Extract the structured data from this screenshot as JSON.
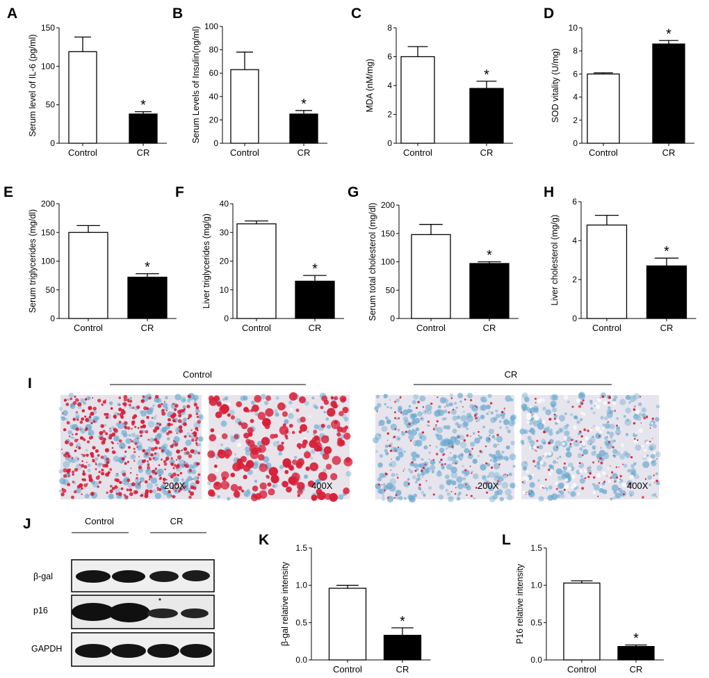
{
  "chart_data": [
    {
      "panel": "A",
      "type": "bar",
      "categories": [
        "Control",
        "CR"
      ],
      "values": [
        119,
        38
      ],
      "errors": [
        19,
        3
      ],
      "significance": [
        "",
        "*"
      ],
      "ylabel": "Serum level of IL-6 (pg/ml)",
      "ylim": [
        0,
        150
      ],
      "yticks": [
        0,
        50,
        100,
        150
      ]
    },
    {
      "panel": "B",
      "type": "bar",
      "categories": [
        "Control",
        "CR"
      ],
      "values": [
        63,
        25
      ],
      "errors": [
        15,
        3
      ],
      "significance": [
        "",
        "*"
      ],
      "ylabel": "Serum Levels of Insulin(ng/ml)",
      "ylim": [
        0,
        100
      ],
      "yticks": [
        0,
        20,
        40,
        60,
        80,
        100
      ]
    },
    {
      "panel": "C",
      "type": "bar",
      "categories": [
        "Control",
        "CR"
      ],
      "values": [
        6.0,
        3.8
      ],
      "errors": [
        0.7,
        0.5
      ],
      "significance": [
        "",
        "*"
      ],
      "ylabel": "MDA (nM/mg)",
      "ylim": [
        0,
        8
      ],
      "yticks": [
        0,
        2,
        4,
        6,
        8
      ]
    },
    {
      "panel": "D",
      "type": "bar",
      "categories": [
        "Control",
        "CR"
      ],
      "values": [
        6.0,
        8.6
      ],
      "errors": [
        0.1,
        0.3
      ],
      "significance": [
        "",
        "*"
      ],
      "ylabel": "SOD vitality (U/mg)",
      "ylim": [
        0,
        10
      ],
      "yticks": [
        0,
        2,
        4,
        6,
        8,
        10
      ]
    },
    {
      "panel": "E",
      "type": "bar",
      "categories": [
        "Control",
        "CR"
      ],
      "values": [
        150,
        72
      ],
      "errors": [
        12,
        6
      ],
      "significance": [
        "",
        "*"
      ],
      "ylabel": "Serum triglycerides (mg/dl)",
      "ylim": [
        0,
        200
      ],
      "yticks": [
        0,
        50,
        100,
        150,
        200
      ]
    },
    {
      "panel": "F",
      "type": "bar",
      "categories": [
        "Control",
        "CR"
      ],
      "values": [
        33,
        13
      ],
      "errors": [
        1,
        2
      ],
      "significance": [
        "",
        "*"
      ],
      "ylabel": "Liver triglycerides (mg/g)",
      "ylim": [
        0,
        40
      ],
      "yticks": [
        0,
        10,
        20,
        30,
        40
      ]
    },
    {
      "panel": "G",
      "type": "bar",
      "categories": [
        "Control",
        "CR"
      ],
      "values": [
        148,
        97
      ],
      "errors": [
        18,
        3
      ],
      "significance": [
        "",
        "*"
      ],
      "ylabel": "Serum total cholesterol (mg/dl)",
      "ylim": [
        0,
        200
      ],
      "yticks": [
        0,
        50,
        100,
        150,
        200
      ]
    },
    {
      "panel": "H",
      "type": "bar",
      "categories": [
        "Control",
        "CR"
      ],
      "values": [
        4.8,
        2.7
      ],
      "errors": [
        0.5,
        0.4
      ],
      "significance": [
        "",
        "*"
      ],
      "ylabel": "Liver cholesterol (mg/g)",
      "ylim": [
        0,
        6
      ],
      "yticks": [
        0,
        2,
        4,
        6
      ]
    },
    {
      "panel": "K",
      "type": "bar",
      "categories": [
        "Control",
        "CR"
      ],
      "values": [
        0.96,
        0.33
      ],
      "errors": [
        0.04,
        0.1
      ],
      "significance": [
        "",
        "*"
      ],
      "ylabel": "β-gal relative intensity",
      "ylim": [
        0,
        1.5
      ],
      "yticks": [
        "0.0",
        "0.5",
        "1.0",
        "1.5"
      ]
    },
    {
      "panel": "L",
      "type": "bar",
      "categories": [
        "Control",
        "CR"
      ],
      "values": [
        1.03,
        0.18
      ],
      "errors": [
        0.03,
        0.02
      ],
      "significance": [
        "",
        "*"
      ],
      "ylabel": "P16 relative intensity",
      "ylim": [
        0,
        1.5
      ],
      "yticks": [
        "0.0",
        "0.5",
        "1.0",
        "1.5"
      ]
    }
  ],
  "histology": {
    "panel": "I",
    "groups": [
      {
        "name": "Control",
        "images": [
          {
            "magnification": "200X"
          },
          {
            "magnification": "400X"
          }
        ]
      },
      {
        "name": "CR",
        "images": [
          {
            "magnification": "200X"
          },
          {
            "magnification": "400X"
          }
        ]
      }
    ],
    "colors": {
      "stain_red": "#d8203a",
      "stain_blue": "#6aa9d0",
      "background": "#e9e6ec"
    }
  },
  "western_blot": {
    "panel": "J",
    "groups": [
      "Control",
      "CR"
    ],
    "bands": [
      "β-gal",
      "p16",
      "GAPDH"
    ]
  }
}
